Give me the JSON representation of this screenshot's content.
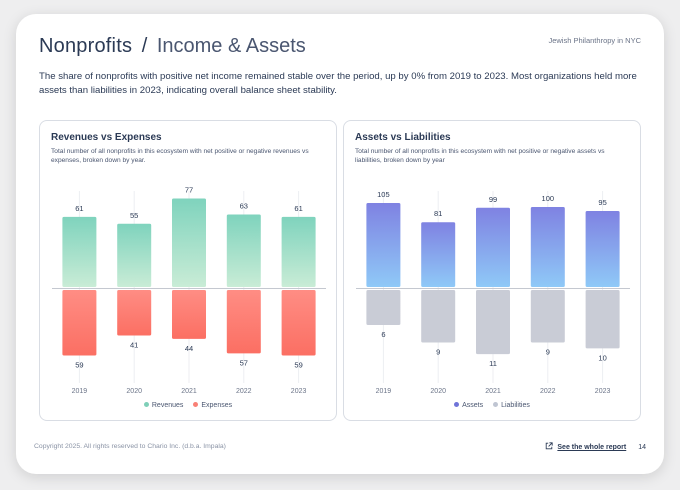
{
  "header": {
    "title_main": "Nonprofits",
    "title_sep": "/",
    "title_sub": "Income & Assets",
    "tag": "Jewish Philanthropy in NYC"
  },
  "intro": "The share of nonprofits with positive net income remained stable over the period, up by 0% from 2019 to 2023. Most organizations held more assets than liabilities in 2023, indicating overall balance sheet stability.",
  "cards": {
    "left": {
      "title": "Revenues vs Expenses",
      "subtitle": "Total number of all nonprofits in this ecosystem with net positive or negative revenues vs expenses, broken down by year."
    },
    "right": {
      "title": "Assets vs Liabilities",
      "subtitle": "Total number of all nonprofits in this ecosystem with net positive or negative assets vs liabilities, broken down by year"
    }
  },
  "colors": {
    "rev_top": "#7fd3bd",
    "rev_bottom": "#c9ecd6",
    "exp_top": "#ff8d84",
    "exp_bottom": "#fb6f63",
    "asset_top": "#7f82e2",
    "asset_bottom": "#8fc9f7",
    "liab": "#c9ccd6",
    "legend_rev": "#7fcfb8",
    "legend_exp": "#f98076",
    "legend_asset": "#6f74d8",
    "legend_liab": "#bfc5d2"
  },
  "chart_data": [
    {
      "type": "bar",
      "title": "Revenues vs Expenses",
      "categories": [
        "2019",
        "2020",
        "2021",
        "2022",
        "2023"
      ],
      "series": [
        {
          "name": "Revenues",
          "values": [
            61,
            55,
            77,
            63,
            61
          ],
          "direction": "up"
        },
        {
          "name": "Expenses",
          "values": [
            59,
            41,
            44,
            57,
            59
          ],
          "direction": "down"
        }
      ],
      "ylim": [
        -63,
        80
      ]
    },
    {
      "type": "bar",
      "title": "Assets vs Liabilities",
      "categories": [
        "2019",
        "2020",
        "2021",
        "2022",
        "2023"
      ],
      "series": [
        {
          "name": "Assets",
          "values": [
            105,
            81,
            99,
            100,
            95
          ],
          "direction": "up"
        },
        {
          "name": "Liabilities",
          "values": [
            6,
            9,
            11,
            9,
            10
          ],
          "direction": "down"
        }
      ],
      "ylim": [
        -12,
        115
      ]
    }
  ],
  "footer": {
    "copyright": "Copyright 2025. All rights reserved to Chario Inc. (d.b.a. Impala)",
    "link": "See the whole report",
    "page": "14"
  }
}
